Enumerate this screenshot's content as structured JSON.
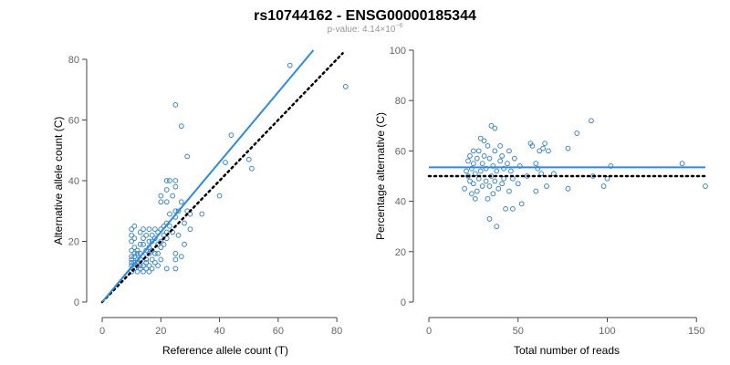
{
  "title": "rs10744162 - ENSG00000185344",
  "subtitle": {
    "prefix": "p-value: 4.14×10",
    "exponent": "−6"
  },
  "colors": {
    "points": "#3a87c8",
    "fit": "#2a8be6",
    "reference": "#000000",
    "axes": "#444444"
  },
  "chart_data": [
    {
      "type": "scatter",
      "xlabel": "Reference allele count (T)",
      "ylabel": "Alternative allele count (C)",
      "xlim": [
        0,
        84
      ],
      "ylim": [
        0,
        80
      ],
      "xticks": [
        0,
        20,
        40,
        60,
        80
      ],
      "yticks": [
        0,
        20,
        40,
        60,
        80
      ],
      "grid": false,
      "fit_line": {
        "x": [
          0,
          72
        ],
        "y": [
          0,
          83
        ],
        "style": "solid"
      },
      "reference_line": {
        "x": [
          0,
          82
        ],
        "y": [
          0,
          82
        ],
        "style": "dotted"
      },
      "points": [
        [
          10,
          10
        ],
        [
          10,
          12
        ],
        [
          10,
          13
        ],
        [
          10,
          14
        ],
        [
          10,
          15
        ],
        [
          10,
          17
        ],
        [
          10,
          20
        ],
        [
          10,
          22
        ],
        [
          10,
          24
        ],
        [
          11,
          11
        ],
        [
          11,
          13
        ],
        [
          11,
          15
        ],
        [
          11,
          16
        ],
        [
          11,
          18
        ],
        [
          11,
          21
        ],
        [
          11,
          25
        ],
        [
          12,
          10
        ],
        [
          12,
          12
        ],
        [
          12,
          14
        ],
        [
          12,
          16
        ],
        [
          12,
          17
        ],
        [
          13,
          11
        ],
        [
          13,
          12
        ],
        [
          13,
          14
        ],
        [
          13,
          16
        ],
        [
          13,
          19
        ],
        [
          13,
          23
        ],
        [
          14,
          10
        ],
        [
          14,
          12
        ],
        [
          14,
          15
        ],
        [
          14,
          19
        ],
        [
          14,
          21
        ],
        [
          14,
          24
        ],
        [
          15,
          11
        ],
        [
          15,
          13
        ],
        [
          15,
          14
        ],
        [
          15,
          17
        ],
        [
          15,
          22
        ],
        [
          16,
          10
        ],
        [
          16,
          12
        ],
        [
          16,
          16
        ],
        [
          16,
          18
        ],
        [
          16,
          20
        ],
        [
          16,
          24
        ],
        [
          17,
          11
        ],
        [
          17,
          14
        ],
        [
          17,
          17
        ],
        [
          17,
          20
        ],
        [
          17,
          22
        ],
        [
          18,
          13
        ],
        [
          18,
          16
        ],
        [
          18,
          21
        ],
        [
          18,
          24
        ],
        [
          19,
          12
        ],
        [
          19,
          16
        ],
        [
          19,
          19
        ],
        [
          19,
          23
        ],
        [
          20,
          14
        ],
        [
          20,
          18
        ],
        [
          20,
          20
        ],
        [
          20,
          24
        ],
        [
          20,
          33
        ],
        [
          20,
          35
        ],
        [
          21,
          19
        ],
        [
          21,
          22
        ],
        [
          21,
          25
        ],
        [
          22,
          11
        ],
        [
          22,
          21
        ],
        [
          22,
          23
        ],
        [
          22,
          26
        ],
        [
          22,
          33
        ],
        [
          22,
          37
        ],
        [
          22,
          40
        ],
        [
          23,
          25
        ],
        [
          23,
          29
        ],
        [
          23,
          40
        ],
        [
          24,
          23
        ],
        [
          24,
          35
        ],
        [
          25,
          11
        ],
        [
          25,
          14
        ],
        [
          25,
          16
        ],
        [
          25,
          28
        ],
        [
          25,
          30
        ],
        [
          25,
          38
        ],
        [
          25,
          40
        ],
        [
          25,
          65
        ],
        [
          26,
          22
        ],
        [
          26,
          30
        ],
        [
          27,
          15
        ],
        [
          27,
          33
        ],
        [
          27,
          58
        ],
        [
          28,
          19
        ],
        [
          28,
          26
        ],
        [
          29,
          30
        ],
        [
          29,
          48
        ],
        [
          30,
          24
        ],
        [
          30,
          29
        ],
        [
          34,
          29
        ],
        [
          40,
          35
        ],
        [
          42,
          46
        ],
        [
          44,
          55
        ],
        [
          50,
          47
        ],
        [
          51,
          44
        ],
        [
          64,
          78
        ],
        [
          83,
          71
        ]
      ]
    },
    {
      "type": "scatter",
      "xlabel": "Total number of reads",
      "ylabel": "Percentage alternative (C)",
      "xlim": [
        0,
        155
      ],
      "ylim": [
        0,
        100
      ],
      "xticks": [
        0,
        50,
        100,
        150
      ],
      "yticks": [
        0,
        20,
        40,
        60,
        80,
        100
      ],
      "grid": false,
      "fit_line": {
        "x": [
          0,
          155
        ],
        "y": [
          53.5,
          53.5
        ],
        "style": "solid"
      },
      "reference_line": {
        "x": [
          0,
          155
        ],
        "y": [
          50,
          50
        ],
        "style": "dotted"
      },
      "points": [
        [
          20,
          45
        ],
        [
          21,
          52
        ],
        [
          22,
          50
        ],
        [
          22,
          56
        ],
        [
          23,
          48
        ],
        [
          23,
          58
        ],
        [
          24,
          43
        ],
        [
          24,
          53
        ],
        [
          25,
          47
        ],
        [
          25,
          55
        ],
        [
          25,
          60
        ],
        [
          26,
          41
        ],
        [
          26,
          51
        ],
        [
          27,
          44
        ],
        [
          27,
          57
        ],
        [
          28,
          49
        ],
        [
          28,
          60
        ],
        [
          29,
          52
        ],
        [
          29,
          65
        ],
        [
          30,
          46
        ],
        [
          30,
          55
        ],
        [
          31,
          58
        ],
        [
          31,
          64
        ],
        [
          32,
          48
        ],
        [
          32,
          53
        ],
        [
          33,
          41
        ],
        [
          33,
          62
        ],
        [
          34,
          33
        ],
        [
          34,
          46
        ],
        [
          34,
          57
        ],
        [
          35,
          50
        ],
        [
          35,
          70
        ],
        [
          36,
          43
        ],
        [
          36,
          54
        ],
        [
          37,
          48
        ],
        [
          37,
          60
        ],
        [
          37,
          69
        ],
        [
          38,
          30
        ],
        [
          38,
          52
        ],
        [
          39,
          45
        ],
        [
          40,
          56
        ],
        [
          40,
          62
        ],
        [
          41,
          47
        ],
        [
          41,
          58
        ],
        [
          42,
          49
        ],
        [
          42,
          53
        ],
        [
          43,
          37
        ],
        [
          44,
          55
        ],
        [
          45,
          44
        ],
        [
          45,
          60
        ],
        [
          46,
          52
        ],
        [
          47,
          49
        ],
        [
          47,
          37
        ],
        [
          48,
          57
        ],
        [
          50,
          47
        ],
        [
          51,
          54
        ],
        [
          52,
          39
        ],
        [
          55,
          50
        ],
        [
          57,
          63
        ],
        [
          58,
          62
        ],
        [
          60,
          44
        ],
        [
          60,
          55
        ],
        [
          61,
          53
        ],
        [
          62,
          60
        ],
        [
          63,
          51
        ],
        [
          64,
          61
        ],
        [
          65,
          63
        ],
        [
          66,
          46
        ],
        [
          67,
          60
        ],
        [
          70,
          51
        ],
        [
          78,
          45
        ],
        [
          78,
          61
        ],
        [
          83,
          67
        ],
        [
          91,
          72
        ],
        [
          92,
          50
        ],
        [
          98,
          46
        ],
        [
          100,
          49
        ],
        [
          102,
          54
        ],
        [
          142,
          55
        ],
        [
          155,
          46
        ]
      ]
    }
  ]
}
